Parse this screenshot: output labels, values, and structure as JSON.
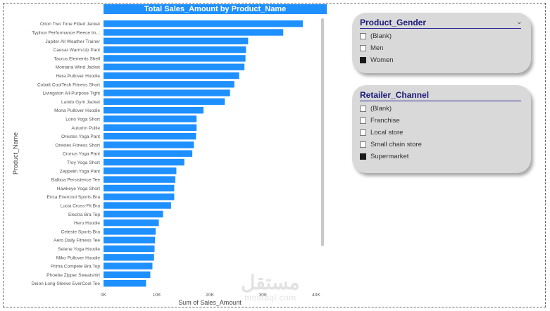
{
  "chart_data": {
    "type": "bar",
    "orientation": "horizontal",
    "title": "Total Sales_Amount by Product_Name",
    "xlabel": "Sum of Sales_Amount",
    "ylabel": "Product_Name",
    "xlim": [
      0,
      40000
    ],
    "x_ticks": [
      "0K",
      "10K",
      "20K",
      "30K",
      "40K"
    ],
    "grid": false,
    "categories": [
      "Orion Two Tone Fitted Jacket",
      "Typhon Performance Fleece lin...",
      "Jupiter All Weather Trainer",
      "Caesar Warm-Up Pant",
      "Taurus Elements Shell",
      "Montana Wind Jacket",
      "Hera Pullover Hoodie",
      "Cobalt CoolTech Fitness Short",
      "Livingston All-Purpose Tight",
      "Lando Gym Jacket",
      "Mona Pullover Hoodie",
      "Lono Yoga Short",
      "Autumn Pullie",
      "Orestes Yoga Pant",
      "Orestes Fitness Short",
      "Cronus Yoga Pant",
      "Troy Yoga Short",
      "Zeppelin Yoga Pant",
      "Balboa Persistence Tee",
      "Hawkeye Yoga Short",
      "Erica Evercool Sports Bra",
      "Lucia Cross-Fit Bra",
      "Electra Bra Top",
      "Hero Hoodie",
      "Celeste Sports Bra",
      "Aero Daily Fitness Tee",
      "Selene Yoga Hoodie",
      "Miko Pullover Hoodie",
      "Prima Compete Bra Top",
      "Phoebe Zipper Sweatshirt",
      "Deion Long-Sleeve EverCool Tee"
    ],
    "values": [
      37500,
      33800,
      27200,
      26800,
      26700,
      26500,
      25500,
      24600,
      23800,
      22800,
      18800,
      17500,
      17500,
      17400,
      17000,
      16700,
      15200,
      13700,
      13500,
      13300,
      13300,
      12700,
      11200,
      10400,
      9800,
      9700,
      9600,
      9500,
      9200,
      8800,
      8000
    ],
    "bar_color": "#1e90ff"
  },
  "slicers": {
    "gender": {
      "title": "Product_Gender",
      "options": [
        {
          "label": "(Blank)",
          "checked": false
        },
        {
          "label": "Men",
          "checked": false
        },
        {
          "label": "Women",
          "checked": true
        }
      ]
    },
    "channel": {
      "title": "Retailer_Channel",
      "options": [
        {
          "label": "(Blank)",
          "checked": false
        },
        {
          "label": "Franchise",
          "checked": false
        },
        {
          "label": "Local store",
          "checked": false
        },
        {
          "label": "Small chain store",
          "checked": false
        },
        {
          "label": "Supermarket",
          "checked": true
        }
      ]
    }
  },
  "watermark": {
    "arabic": "مستقل",
    "latin": "mostaql.com"
  }
}
